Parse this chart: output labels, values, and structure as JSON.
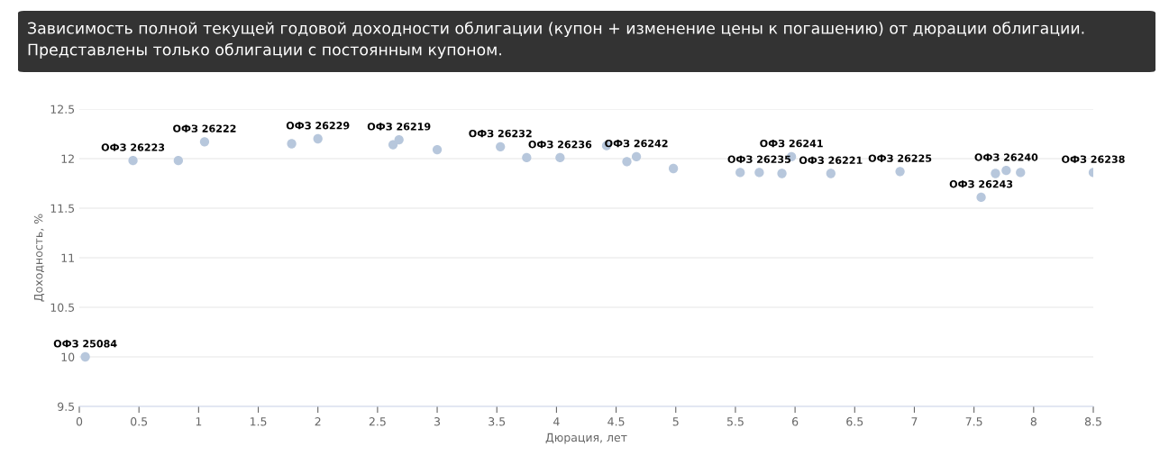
{
  "chart_data": {
    "type": "scatter",
    "title": "Зависимость полной текущей годовой доходности облигации (купон + изменение цены к погашению) от дюрации облигации. Представлены только облигации с постоянным купоном.",
    "xlabel": "Дюрация, лет",
    "ylabel": "Доходность, %",
    "xlim": [
      0,
      8.5
    ],
    "xticks": [
      0,
      0.5,
      1,
      1.5,
      2,
      2.5,
      3,
      3.5,
      4,
      4.5,
      5,
      5.5,
      6,
      6.5,
      7,
      7.5,
      8,
      8.5
    ],
    "ylim": [
      9.5,
      12.5
    ],
    "yticks": [
      9.5,
      10,
      10.5,
      11,
      11.5,
      12,
      12.5
    ],
    "grid": "y",
    "marker": "circle",
    "legend": false,
    "series": [
      {
        "color": "#b7c7dc",
        "x": [
          0.05,
          0.45,
          0.83,
          1.05,
          1.78,
          2.0,
          2.63,
          2.68,
          3.0,
          3.53,
          3.75,
          4.03,
          4.42,
          4.59,
          4.67,
          4.98,
          5.54,
          5.7,
          5.89,
          5.97,
          6.3,
          6.88,
          7.56,
          7.68,
          7.77,
          7.89,
          8.5
        ],
        "values": [
          10.0,
          11.98,
          11.98,
          12.17,
          12.15,
          12.2,
          12.14,
          12.19,
          12.09,
          12.12,
          12.01,
          12.01,
          12.13,
          11.97,
          12.02,
          11.9,
          11.86,
          11.86,
          11.85,
          12.02,
          11.85,
          11.87,
          11.61,
          11.85,
          11.88,
          11.86,
          11.86
        ]
      }
    ],
    "annotations": [
      {
        "text": "ОФЗ 25084",
        "x": 0.05,
        "y": 10.0
      },
      {
        "text": "ОФЗ 26223",
        "x": 0.45,
        "y": 11.98
      },
      {
        "text": "ОФЗ 26222",
        "x": 1.05,
        "y": 12.17
      },
      {
        "text": "ОФЗ 26229",
        "x": 2.0,
        "y": 12.2
      },
      {
        "text": "ОФЗ 26219",
        "x": 2.68,
        "y": 12.19
      },
      {
        "text": "ОФЗ 26232",
        "x": 3.53,
        "y": 12.12
      },
      {
        "text": "ОФЗ 26236",
        "x": 4.03,
        "y": 12.01
      },
      {
        "text": "ОФЗ 26242",
        "x": 4.67,
        "y": 12.02
      },
      {
        "text": "ОФЗ 26235",
        "x": 5.7,
        "y": 11.86
      },
      {
        "text": "ОФЗ 26241",
        "x": 5.97,
        "y": 12.02
      },
      {
        "text": "ОФЗ 26221",
        "x": 6.3,
        "y": 11.85
      },
      {
        "text": "ОФЗ 26225",
        "x": 6.88,
        "y": 11.87
      },
      {
        "text": "ОФЗ 26243",
        "x": 7.56,
        "y": 11.61
      },
      {
        "text": "ОФЗ 26240",
        "x": 7.77,
        "y": 11.88
      },
      {
        "text": "ОФЗ 26238",
        "x": 8.5,
        "y": 11.86
      }
    ]
  }
}
